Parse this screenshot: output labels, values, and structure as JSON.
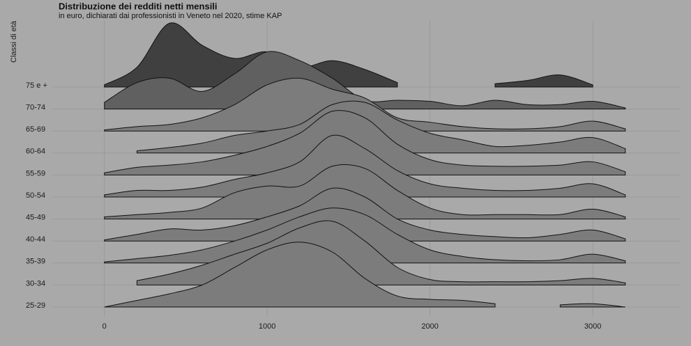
{
  "chart_data": {
    "type": "ridgeline",
    "title": "Distribuzione dei redditi netti mensili",
    "subtitle": "in euro, dichiarati dai professionisti in Veneto nel 2020, stime KAP",
    "y_label": "Classi di età",
    "x": [
      0,
      200,
      400,
      600,
      800,
      1000,
      1200,
      1400,
      1600,
      1800,
      2000,
      2200,
      2400,
      2600,
      2800,
      3000,
      3200
    ],
    "xlim": [
      -320,
      3535
    ],
    "xticks": [
      0,
      1000,
      2000,
      3000
    ],
    "grid": true,
    "series": [
      {
        "name": "75 e +",
        "color": "#404040",
        "values": [
          0.1,
          0.9,
          2.9,
          1.9,
          1.3,
          1.6,
          0.9,
          1.2,
          0.8,
          0.2,
          null,
          null,
          0.15,
          0.3,
          0.55,
          0.1,
          null
        ]
      },
      {
        "name": "70-74",
        "color": "#606060",
        "values": [
          0.3,
          1.2,
          1.4,
          0.8,
          1.6,
          2.6,
          2.2,
          1.4,
          0.4,
          0.4,
          0.35,
          0.15,
          0.4,
          0.2,
          0.2,
          0.35,
          0.05
        ]
      },
      {
        "name": "65-69",
        "color": "#7c7c7c",
        "values": [
          0.05,
          0.2,
          0.3,
          0.6,
          1.2,
          2.1,
          2.4,
          1.9,
          1.5,
          0.6,
          0.4,
          0.2,
          0.1,
          0.1,
          0.2,
          0.45,
          0.1
        ]
      },
      {
        "name": "60-64",
        "color": "#7c7c7c",
        "values": [
          null,
          0.1,
          0.25,
          0.45,
          0.8,
          1.0,
          1.3,
          2.2,
          2.3,
          1.5,
          0.9,
          0.6,
          0.3,
          0.35,
          0.5,
          0.7,
          0.2
        ]
      },
      {
        "name": "55-59",
        "color": "#7c7c7c",
        "values": [
          0.1,
          0.35,
          0.45,
          0.6,
          0.9,
          1.3,
          1.9,
          2.9,
          2.6,
          1.4,
          0.7,
          0.45,
          0.4,
          0.4,
          0.45,
          0.6,
          0.15
        ]
      },
      {
        "name": "50-54",
        "color": "#7c7c7c",
        "values": [
          0.1,
          0.3,
          0.3,
          0.45,
          0.8,
          1.1,
          1.6,
          2.8,
          2.2,
          1.2,
          0.6,
          0.4,
          0.3,
          0.3,
          0.4,
          0.6,
          0.1
        ]
      },
      {
        "name": "45-49",
        "color": "#7c7c7c",
        "values": [
          0.1,
          0.2,
          0.3,
          0.5,
          1.2,
          1.5,
          1.5,
          2.4,
          2.3,
          1.3,
          0.5,
          0.2,
          0.2,
          0.2,
          0.2,
          0.45,
          0.1
        ]
      },
      {
        "name": "40-44",
        "color": "#7c7c7c",
        "values": [
          0.05,
          0.3,
          0.55,
          0.5,
          0.7,
          1.1,
          1.6,
          2.4,
          2.0,
          1.0,
          0.5,
          0.3,
          0.2,
          0.15,
          0.3,
          0.5,
          0.1
        ]
      },
      {
        "name": "35-39",
        "color": "#7c7c7c",
        "values": [
          0.05,
          0.2,
          0.35,
          0.6,
          1.0,
          1.5,
          2.1,
          2.5,
          2.2,
          1.3,
          0.6,
          0.3,
          0.15,
          0.1,
          0.15,
          0.4,
          0.1
        ]
      },
      {
        "name": "30-34",
        "color": "#7c7c7c",
        "values": [
          null,
          0.2,
          0.5,
          0.9,
          1.4,
          1.9,
          2.6,
          2.9,
          2.0,
          0.8,
          0.25,
          0.15,
          0.15,
          0.15,
          0.2,
          0.3,
          0.1
        ]
      },
      {
        "name": "25-29",
        "color": "#7c7c7c",
        "values": [
          0,
          0.3,
          0.6,
          1.0,
          1.8,
          2.6,
          2.95,
          2.5,
          1.3,
          0.5,
          0.35,
          0.3,
          0.15,
          null,
          0.1,
          0.15,
          0
        ]
      }
    ]
  }
}
